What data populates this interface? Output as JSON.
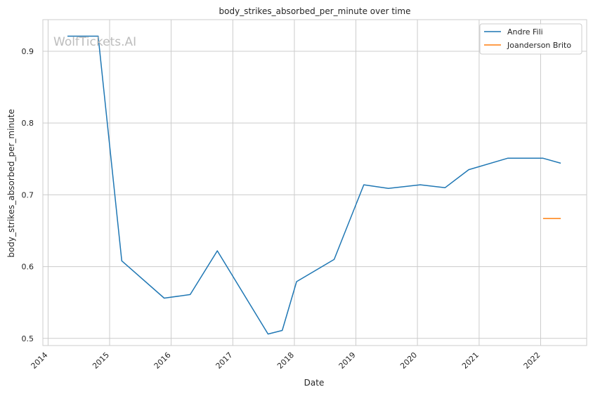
{
  "chart_data": {
    "type": "line",
    "title": "body_strikes_absorbed_per_minute over time",
    "xlabel": "Date",
    "ylabel": "body_strikes_absorbed_per_minute",
    "xlim": [
      "2013-12-01",
      "2022-10-01"
    ],
    "ylim": [
      0.49,
      0.944
    ],
    "x_ticks": [
      "2014",
      "2015",
      "2016",
      "2017",
      "2018",
      "2019",
      "2020",
      "2021",
      "2022"
    ],
    "y_ticks": [
      "0.5",
      "0.6",
      "0.7",
      "0.8",
      "0.9"
    ],
    "grid": true,
    "legend_position": "top-right",
    "watermark": "WolfTickets.AI",
    "series": [
      {
        "name": "Andre Fili",
        "color": "#1f77b4",
        "points": [
          {
            "x": "2014-04-26",
            "y": 0.921
          },
          {
            "x": "2014-10-25",
            "y": 0.921
          },
          {
            "x": "2015-03-14",
            "y": 0.608
          },
          {
            "x": "2015-11-21",
            "y": 0.556
          },
          {
            "x": "2016-04-23",
            "y": 0.561
          },
          {
            "x": "2016-10-01",
            "y": 0.622
          },
          {
            "x": "2017-07-29",
            "y": 0.506
          },
          {
            "x": "2017-10-21",
            "y": 0.511
          },
          {
            "x": "2018-01-14",
            "y": 0.579
          },
          {
            "x": "2018-08-25",
            "y": 0.61
          },
          {
            "x": "2019-02-17",
            "y": 0.714
          },
          {
            "x": "2019-07-13",
            "y": 0.709
          },
          {
            "x": "2020-01-18",
            "y": 0.714
          },
          {
            "x": "2020-06-13",
            "y": 0.71
          },
          {
            "x": "2020-10-31",
            "y": 0.735
          },
          {
            "x": "2021-06-19",
            "y": 0.751
          },
          {
            "x": "2022-01-15",
            "y": 0.751
          },
          {
            "x": "2022-04-30",
            "y": 0.744
          }
        ]
      },
      {
        "name": "Joanderson Brito",
        "color": "#ff7f0e",
        "points": [
          {
            "x": "2022-01-15",
            "y": 0.667
          },
          {
            "x": "2022-04-30",
            "y": 0.667
          }
        ]
      }
    ]
  }
}
